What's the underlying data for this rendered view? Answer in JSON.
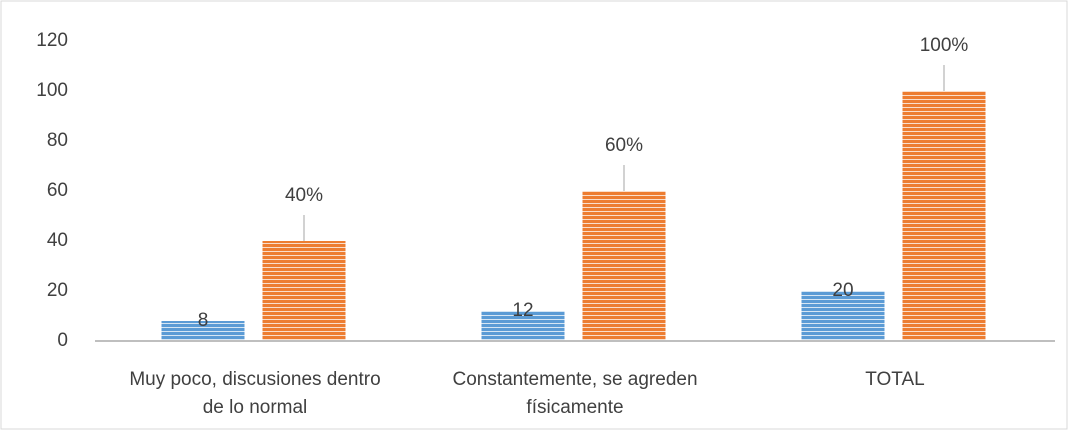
{
  "chart_data": {
    "type": "bar",
    "categories": [
      "Muy poco, discusiones dentro de lo normal",
      "Constantemente, se agreden físicamente",
      "TOTAL"
    ],
    "series": [
      {
        "color": "#5b9bd5",
        "values": [
          8,
          12,
          20
        ]
      },
      {
        "color": "#ed7d31",
        "values": [
          40,
          60,
          100
        ],
        "value_labels": [
          "40%",
          "60%",
          "100%"
        ]
      }
    ],
    "ylim": [
      0,
      120
    ],
    "yticks": [
      0,
      20,
      40,
      60,
      80,
      100,
      120
    ],
    "grid": false
  }
}
